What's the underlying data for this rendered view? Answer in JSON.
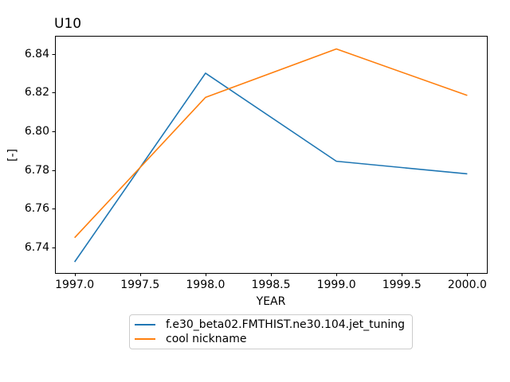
{
  "chart_data": {
    "type": "line",
    "title": "U10",
    "xlabel": "YEAR",
    "ylabel": "[-]",
    "x": [
      1997,
      1998,
      1999,
      2000
    ],
    "series": [
      {
        "name": "f.e30_beta02.FMTHIST.ne30.104.jet_tuning",
        "color": "#1f77b4",
        "values": [
          6.7325,
          6.83,
          6.7845,
          6.778
        ]
      },
      {
        "name": "cool nickname",
        "color": "#ff7f0e",
        "values": [
          6.745,
          6.8175,
          6.8425,
          6.8185
        ]
      }
    ],
    "xlim": [
      1996.85,
      2000.15
    ],
    "ylim": [
      6.7268,
      6.8493
    ],
    "xticks": {
      "values": [
        1997.0,
        1997.5,
        1998.0,
        1998.5,
        1999.0,
        1999.5,
        2000.0
      ],
      "labels": [
        "1997.0",
        "1997.5",
        "1998.0",
        "1998.5",
        "1999.0",
        "1999.5",
        "2000.0"
      ]
    },
    "yticks": {
      "values": [
        6.74,
        6.76,
        6.78,
        6.8,
        6.82,
        6.84
      ],
      "labels": [
        "6.74",
        "6.76",
        "6.78",
        "6.80",
        "6.82",
        "6.84"
      ]
    },
    "grid": false,
    "legend": {
      "position": "below-center",
      "entries": [
        "f.e30_beta02.FMTHIST.ne30.104.jet_tuning",
        "cool nickname"
      ]
    },
    "axis_color": "#000000",
    "background_color": "#ffffff"
  }
}
